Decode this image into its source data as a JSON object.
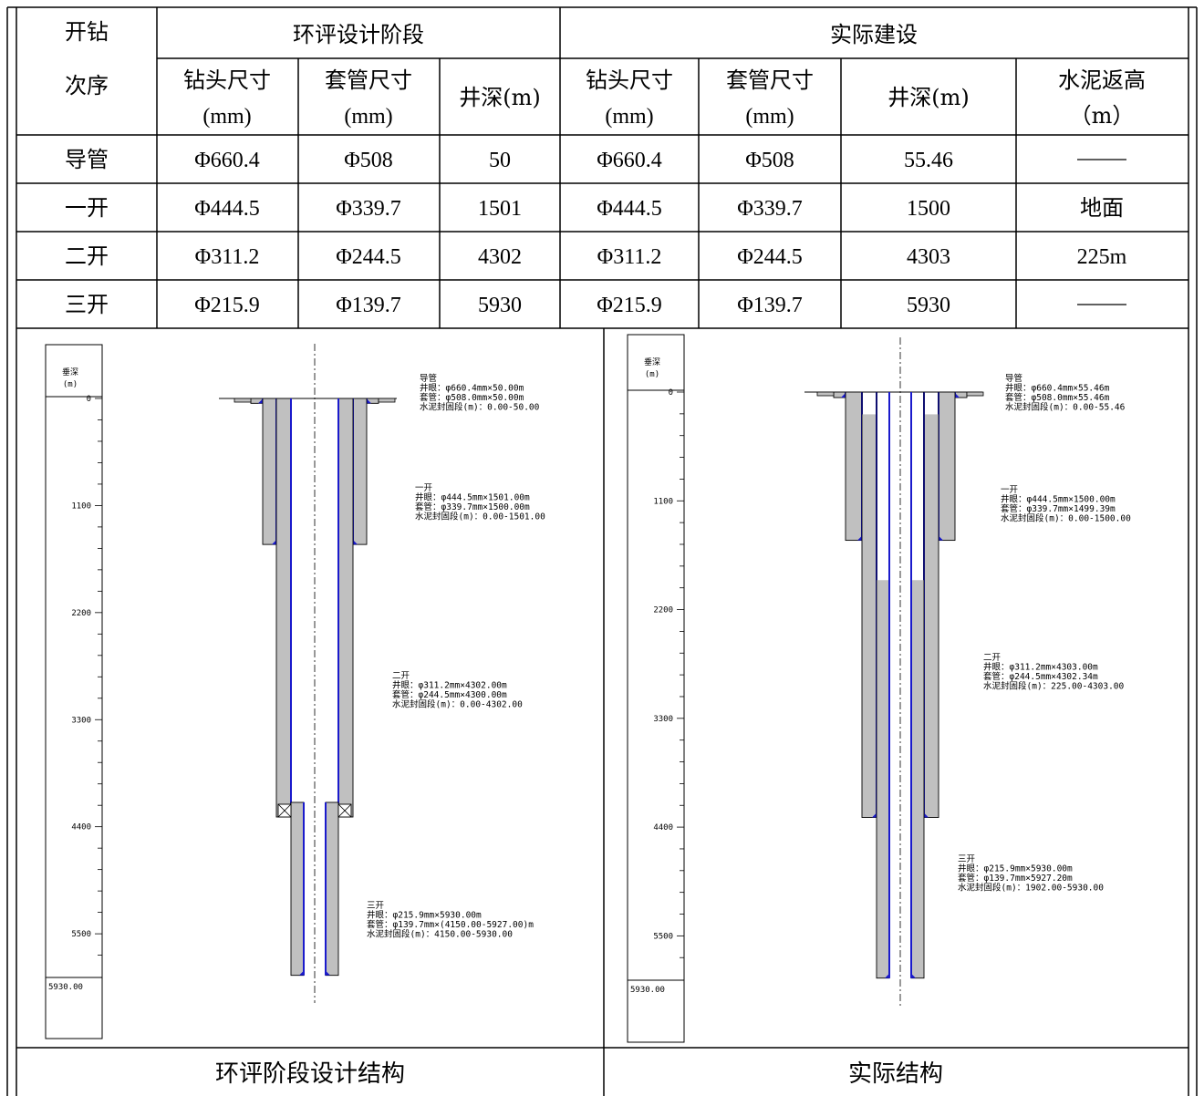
{
  "table": {
    "header_row_label": "开钻\n次序",
    "group_eia": "环评设计阶段",
    "group_actual": "实际建设",
    "col_bit_size": "钻头尺寸",
    "col_casing_size": "套管尺寸",
    "unit_mm": "(mm)",
    "col_depth": "井深(m)",
    "col_cement": "水泥返高",
    "unit_m_paren": "（m）",
    "rows": [
      {
        "stage": "导管",
        "eia_bit": "Φ660.4",
        "eia_casing": "Φ508",
        "eia_depth": "50",
        "act_bit": "Φ660.4",
        "act_casing": "Φ508",
        "act_depth": "55.46",
        "cement": "——"
      },
      {
        "stage": "一开",
        "eia_bit": "Φ444.5",
        "eia_casing": "Φ339.7",
        "eia_depth": "1501",
        "act_bit": "Φ444.5",
        "act_casing": "Φ339.7",
        "act_depth": "1500",
        "cement": "地面"
      },
      {
        "stage": "二开",
        "eia_bit": "Φ311.2",
        "eia_casing": "Φ244.5",
        "eia_depth": "4302",
        "act_bit": "Φ311.2",
        "act_casing": "Φ244.5",
        "act_depth": "4303",
        "cement": "225m"
      },
      {
        "stage": "三开",
        "eia_bit": "Φ215.9",
        "eia_casing": "Φ139.7",
        "eia_depth": "5930",
        "act_bit": "Φ215.9",
        "act_casing": "Φ139.7",
        "act_depth": "5930",
        "cement": "——"
      }
    ]
  },
  "diagram_common": {
    "axis_title_1": "垂深",
    "axis_title_2": "(m)",
    "ticks": [
      "0",
      "1100",
      "2200",
      "3300",
      "4400",
      "5500"
    ],
    "bottom_label": "5930.00"
  },
  "diagram_left": {
    "caption": "环评阶段设计结构",
    "ann_conductor": [
      "导管",
      "井眼：φ660.4mm×50.00m",
      "套管：φ508.0mm×50.00m",
      "水泥封固段(m)：0.00-50.00"
    ],
    "ann_first": [
      "一开",
      "井眼：φ444.5mm×1501.00m",
      "套管：φ339.7mm×1500.00m",
      "水泥封固段(m)：0.00-1501.00"
    ],
    "ann_second": [
      "二开",
      "井眼：φ311.2mm×4302.00m",
      "套管：φ244.5mm×4300.00m",
      "水泥封固段(m)：0.00-4302.00"
    ],
    "ann_third": [
      "三开",
      "井眼：φ215.9mm×5930.00m",
      "套管：φ139.7mm×(4150.00-5927.00)m",
      "水泥封固段(m)：4150.00-5930.00"
    ]
  },
  "diagram_right": {
    "caption": "实际结构",
    "ann_conductor": [
      "导管",
      "井眼：φ660.4mm×55.46m",
      "套管：φ508.0mm×55.46m",
      "水泥封固段(m)：0.00-55.46"
    ],
    "ann_first": [
      "一开",
      "井眼：φ444.5mm×1500.00m",
      "套管：φ339.7mm×1499.39m",
      "水泥封固段(m)：0.00-1500.00"
    ],
    "ann_second": [
      "二开",
      "井眼：φ311.2mm×4303.00m",
      "套管：φ244.5mm×4302.34m",
      "水泥封固段(m)：225.00-4303.00"
    ],
    "ann_third": [
      "三开",
      "井眼：φ215.9mm×5930.00m",
      "套管：φ139.7mm×5927.20m",
      "水泥封固段(m)：1902.00-5930.00"
    ]
  }
}
